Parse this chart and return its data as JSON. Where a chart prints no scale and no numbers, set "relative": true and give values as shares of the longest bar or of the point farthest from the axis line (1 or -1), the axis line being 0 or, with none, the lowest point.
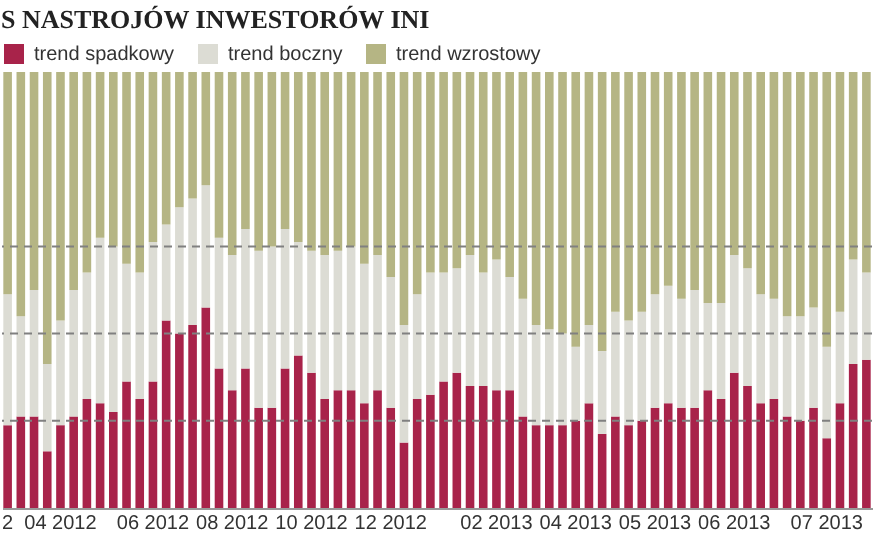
{
  "chart_data": {
    "type": "bar",
    "title": "S NASTROJÓW INWESTORÓW INI",
    "relative": true,
    "stacked": true,
    "legend": "top left",
    "grid": false,
    "categories": [
      "2",
      null,
      null,
      null,
      "04 2012",
      null,
      null,
      null,
      null,
      null,
      null,
      "06 2012",
      null,
      null,
      null,
      null,
      null,
      "08 2012",
      null,
      null,
      null,
      null,
      null,
      "10 2012",
      null,
      null,
      null,
      null,
      null,
      "12 2012",
      null,
      null,
      null,
      null,
      null,
      null,
      null,
      "02 2013",
      null,
      null,
      null,
      null,
      null,
      "04 2013",
      null,
      null,
      null,
      null,
      null,
      "05 2013",
      null,
      null,
      null,
      null,
      null,
      "06 2013",
      null,
      null,
      null,
      null,
      null,
      null,
      "07 2013",
      null,
      null,
      null
    ],
    "series": [
      {
        "name": "trend spadkowy",
        "color": "#a8234a",
        "values": [
          0.19,
          0.21,
          0.21,
          0.13,
          0.19,
          0.21,
          0.25,
          0.24,
          0.22,
          0.29,
          0.25,
          0.29,
          0.43,
          0.4,
          0.42,
          0.46,
          0.32,
          0.27,
          0.32,
          0.23,
          0.23,
          0.32,
          0.35,
          0.31,
          0.25,
          0.27,
          0.27,
          0.24,
          0.27,
          0.23,
          0.15,
          0.25,
          0.26,
          0.29,
          0.31,
          0.28,
          0.28,
          0.27,
          0.27,
          0.21,
          0.19,
          0.19,
          0.19,
          0.2,
          0.24,
          0.17,
          0.21,
          0.19,
          0.2,
          0.23,
          0.24,
          0.23,
          0.23,
          0.27,
          0.25,
          0.31,
          0.28,
          0.24,
          0.25,
          0.21,
          0.2,
          0.23,
          0.16,
          0.24,
          0.33,
          0.34
        ]
      },
      {
        "name": "trend boczny",
        "color": "#dcdcd4",
        "values": [
          0.3,
          0.23,
          0.29,
          0.2,
          0.24,
          0.29,
          0.29,
          0.38,
          0.38,
          0.27,
          0.29,
          0.32,
          0.22,
          0.29,
          0.29,
          0.28,
          0.3,
          0.31,
          0.32,
          0.36,
          0.37,
          0.32,
          0.26,
          0.28,
          0.33,
          0.32,
          0.33,
          0.32,
          0.31,
          0.3,
          0.27,
          0.24,
          0.28,
          0.25,
          0.24,
          0.3,
          0.26,
          0.3,
          0.26,
          0.27,
          0.23,
          0.22,
          0.21,
          0.17,
          0.18,
          0.19,
          0.24,
          0.24,
          0.25,
          0.26,
          0.27,
          0.25,
          0.27,
          0.2,
          0.22,
          0.27,
          0.27,
          0.25,
          0.23,
          0.23,
          0.24,
          0.23,
          0.21,
          0.21,
          0.24,
          0.2
        ]
      },
      {
        "name": "trend wzrostowy",
        "color": "#b5b584",
        "values": [
          0.51,
          0.56,
          0.5,
          0.67,
          0.57,
          0.5,
          0.46,
          0.38,
          0.4,
          0.44,
          0.46,
          0.39,
          0.35,
          0.31,
          0.29,
          0.26,
          0.38,
          0.42,
          0.36,
          0.41,
          0.4,
          0.36,
          0.39,
          0.41,
          0.42,
          0.41,
          0.4,
          0.44,
          0.42,
          0.47,
          0.58,
          0.51,
          0.46,
          0.46,
          0.45,
          0.42,
          0.46,
          0.43,
          0.47,
          0.52,
          0.58,
          0.59,
          0.6,
          0.63,
          0.58,
          0.64,
          0.55,
          0.57,
          0.55,
          0.51,
          0.49,
          0.52,
          0.5,
          0.53,
          0.53,
          0.42,
          0.45,
          0.51,
          0.52,
          0.56,
          0.56,
          0.54,
          0.63,
          0.55,
          0.43,
          0.46
        ]
      }
    ],
    "ref_lines": [
      {
        "axis": "y",
        "value": 0.2,
        "color": "#808080",
        "line_style": "dashed"
      },
      {
        "axis": "y",
        "value": 0.4,
        "color": "#808080",
        "line_style": "dashed"
      },
      {
        "axis": "y",
        "value": 0.6,
        "color": "#808080",
        "line_style": "dashed"
      }
    ]
  }
}
